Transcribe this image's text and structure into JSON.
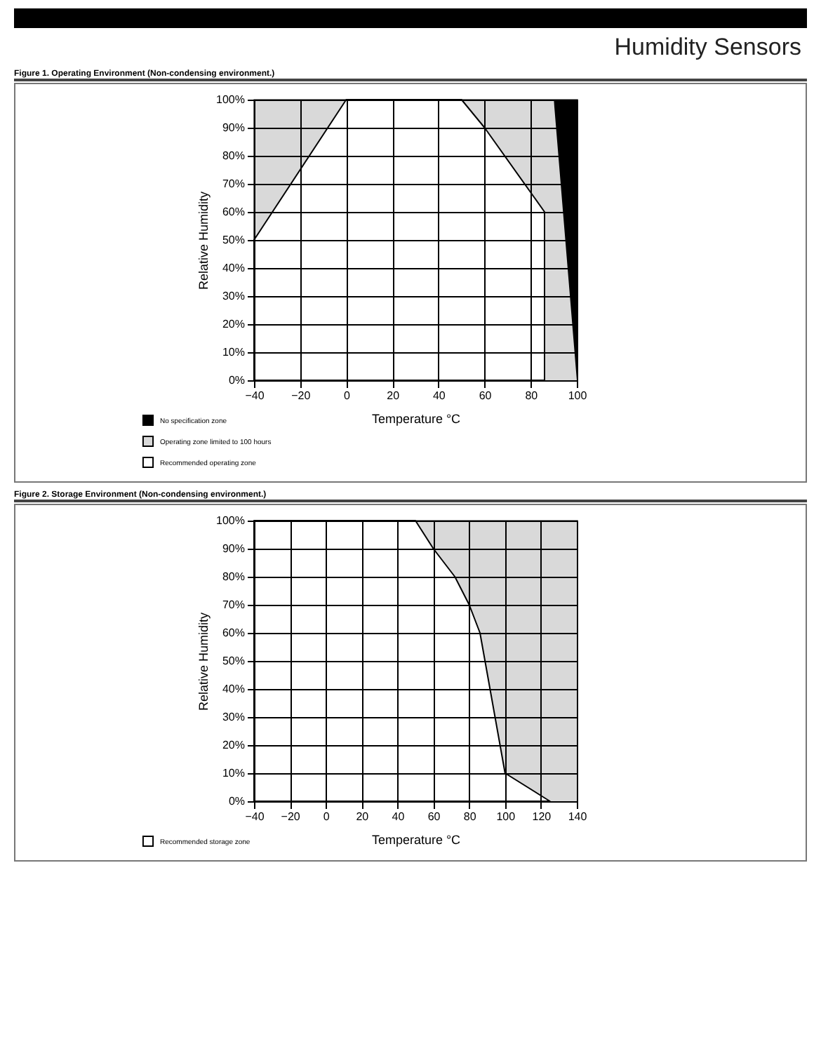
{
  "chart_data": [
    {
      "type": "area",
      "title": "Figure 1. Operating Environment (Non-condensing environment.)",
      "annotations": [
        "Humidity Sensors"
      ],
      "xlabel": "Temperature °C",
      "ylabel": "Relative Humidity",
      "grid": true,
      "legend": "bottom left",
      "series": [
        {
          "name": "No specification zone",
          "color": "#000000",
          "x": [
            90,
            100
          ],
          "values": [
            100,
            100
          ]
        },
        {
          "name": "Operating zone limited to 100 hours",
          "color": "#d9d9d9",
          "x": [
            -40,
            0,
            25,
            50,
            90,
            100
          ],
          "values": [
            100,
            100,
            null,
            100,
            100,
            0
          ]
        },
        {
          "name": "Recommended operating zone",
          "color": "#ffffff",
          "x": [
            -40,
            0,
            50,
            60,
            86,
            86
          ],
          "values": [
            50,
            100,
            100,
            90,
            60,
            0
          ]
        }
      ],
      "xlim": [
        -40,
        100
      ],
      "xticks": [
        -40,
        -20,
        0,
        20,
        40,
        60,
        80,
        100
      ],
      "ylim": [
        0,
        100
      ],
      "yticks": [
        {
          "value": 0,
          "label": "0%"
        },
        {
          "value": 10,
          "label": "10%"
        },
        {
          "value": 20,
          "label": "20%"
        },
        {
          "value": 30,
          "label": "30%"
        },
        {
          "value": 40,
          "label": "40%"
        },
        {
          "value": 50,
          "label": "50%"
        },
        {
          "value": 60,
          "label": "60%"
        },
        {
          "value": 70,
          "label": "70%"
        },
        {
          "value": 80,
          "label": "80%"
        },
        {
          "value": 90,
          "label": "90%"
        },
        {
          "value": 100,
          "label": "100%"
        }
      ]
    },
    {
      "type": "area",
      "title": "Figure 2. Storage Environment (Non-condensing environment.)",
      "xlabel": "Temperature °C",
      "ylabel": "Relative Humidity",
      "grid": true,
      "legend": "bottom left",
      "series": [
        {
          "color": "#d9d9d9",
          "x": [
            50,
            140
          ],
          "values": [
            100,
            100
          ]
        },
        {
          "name": "Recommended storage zone",
          "color": "#ffffff",
          "x": [
            -40,
            50,
            60,
            72,
            80,
            86,
            100,
            120,
            125
          ],
          "values": [
            100,
            100,
            90,
            80,
            70,
            60,
            10,
            2,
            0
          ]
        }
      ],
      "xlim": [
        -40,
        140
      ],
      "xticks": [
        -40,
        -20,
        0,
        20,
        40,
        60,
        80,
        100,
        120,
        140
      ],
      "ylim": [
        0,
        100
      ],
      "yticks": [
        {
          "value": 0,
          "label": "0%"
        },
        {
          "value": 10,
          "label": "10%"
        },
        {
          "value": 20,
          "label": "20%"
        },
        {
          "value": 30,
          "label": "30%"
        },
        {
          "value": 40,
          "label": "40%"
        },
        {
          "value": 50,
          "label": "50%"
        },
        {
          "value": 60,
          "label": "60%"
        },
        {
          "value": 70,
          "label": "70%"
        },
        {
          "value": 80,
          "label": "80%"
        },
        {
          "value": 90,
          "label": "90%"
        },
        {
          "value": 100,
          "label": "100%"
        }
      ]
    }
  ]
}
